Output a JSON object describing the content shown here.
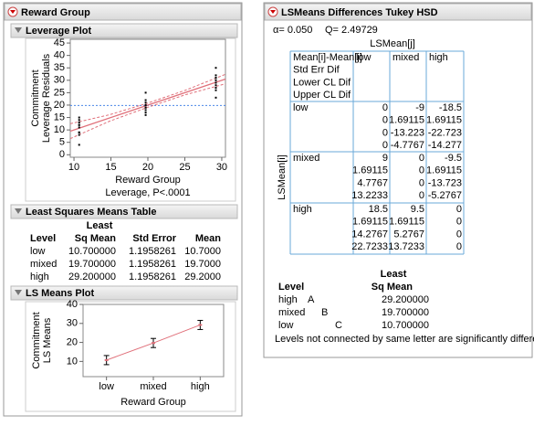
{
  "left": {
    "title": "Reward Group",
    "leverage_plot": {
      "title": "Leverage Plot",
      "chart": {
        "type": "scatter",
        "y_label_lines": [
          "Commitment",
          "Leverage Residuals"
        ],
        "x_label": "Reward Group",
        "subtitle": "Leverage, P<.0001",
        "xlim": [
          9.5,
          30.5
        ],
        "ylim": [
          -1,
          46.5
        ],
        "xticks": [
          10,
          15,
          20,
          25,
          30
        ],
        "yticks": [
          0,
          5,
          10,
          15,
          20,
          25,
          30,
          35,
          40,
          45
        ],
        "x": [
          10.7,
          10.7,
          10.7,
          10.7,
          10.7,
          10.7,
          10.7,
          10.7,
          10.7,
          10.7,
          19.7,
          19.7,
          19.7,
          19.7,
          19.7,
          19.7,
          19.7,
          19.7,
          19.7,
          19.7,
          29.2,
          29.2,
          29.2,
          29.2,
          29.2,
          29.2,
          29.2,
          29.2,
          29.2,
          29.2
        ],
        "y": [
          4,
          8,
          9,
          11,
          12,
          12,
          13,
          14,
          15,
          9,
          16,
          17,
          18,
          19,
          19,
          20,
          20,
          21,
          22,
          25,
          23,
          26,
          27,
          28,
          29,
          30,
          31,
          31,
          32,
          35
        ],
        "color": "#000000",
        "fit": {
          "x": [
            9.5,
            30.5
          ],
          "y": [
            9.5,
            30.5
          ],
          "color": "#e0707a"
        },
        "confidence": {
          "x": [
            9.5,
            14.8,
            19.87,
            25,
            30.5
          ],
          "upper": [
            12.5,
            16.1,
            20.7,
            25.9,
            32.4
          ],
          "lower": [
            6.5,
            13.5,
            19.0,
            24.1,
            28.6
          ],
          "color": "#e0707a"
        },
        "mean_line": {
          "value": 19.87,
          "color": "#4a86e8"
        }
      }
    },
    "lsm_table": {
      "title": "Least Squares Means Table",
      "header_top": "Least",
      "columns": [
        "Level",
        "Sq Mean",
        "Std Error",
        "Mean"
      ],
      "rows": [
        [
          "low",
          "10.700000",
          "1.1958261",
          "10.7000"
        ],
        [
          "mixed",
          "19.700000",
          "1.1958261",
          "19.7000"
        ],
        [
          "high",
          "29.200000",
          "1.1958261",
          "29.2000"
        ]
      ]
    },
    "ls_means_plot": {
      "title": "LS Means Plot",
      "chart": {
        "type": "errorbar",
        "y_label_lines": [
          "Commitment",
          "LS Means"
        ],
        "x_label": "Reward Group",
        "categories": [
          "low",
          "mixed",
          "high"
        ],
        "values": [
          10.7,
          19.7,
          29.2
        ],
        "errors": [
          2.4,
          2.4,
          2.4
        ],
        "ylim": [
          2,
          40
        ],
        "yticks": [
          10,
          20,
          30,
          40
        ],
        "color": "#e0707a"
      }
    }
  },
  "right": {
    "title": "LSMeans Differences Tukey HSD",
    "alpha": "α= 0.050",
    "q": "Q= 2.49729",
    "col_header": "LSMean[j]",
    "row_header": "LSMean[i]",
    "legend": [
      "Mean[i]-Mean[j]",
      "Std Err Dif",
      "Lower CL Dif",
      "Upper CL Dif"
    ],
    "levels": [
      "low",
      "mixed",
      "high"
    ],
    "cells": [
      [
        [
          0,
          0,
          0,
          0
        ],
        [
          -9,
          1.69115,
          -13.223,
          -4.7767
        ],
        [
          -18.5,
          1.69115,
          -22.723,
          -14.277
        ]
      ],
      [
        [
          9,
          1.69115,
          4.7767,
          13.2233
        ],
        [
          0,
          0,
          0,
          0
        ],
        [
          -9.5,
          1.69115,
          -13.723,
          -5.2767
        ]
      ],
      [
        [
          18.5,
          1.69115,
          14.2767,
          22.7233
        ],
        [
          9.5,
          1.69115,
          5.2767,
          13.7233
        ],
        [
          0,
          0,
          0,
          0
        ]
      ]
    ],
    "connecting": {
      "header_top": "Least",
      "columns": [
        "Level",
        "Sq Mean"
      ],
      "rows": [
        {
          "level": "high",
          "letter": "A",
          "mean": "29.200000"
        },
        {
          "level": "mixed",
          "letter": "B",
          "mean": "19.700000"
        },
        {
          "level": "low",
          "letter": "C",
          "mean": "10.700000"
        }
      ],
      "note": "Levels not connected by same letter are significantly different."
    }
  }
}
